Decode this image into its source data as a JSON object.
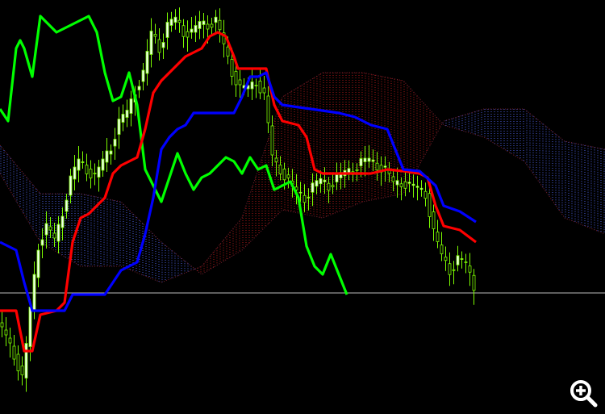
{
  "chart_data": {
    "type": "line",
    "title": "",
    "xlabel": "",
    "ylabel": "",
    "x": [
      0,
      50,
      100,
      150,
      200,
      250,
      300,
      350,
      400,
      450,
      500,
      550,
      600,
      650,
      700,
      750
    ],
    "ylim": [
      0,
      513
    ],
    "grid": false,
    "horizontal_line": 150,
    "cloud": {
      "span_a": [
        333,
        273,
        273,
        263,
        213,
        173,
        203,
        253,
        243,
        263,
        273,
        363,
        378,
        378,
        338,
        328
      ],
      "span_b": [
        298,
        213,
        183,
        183,
        163,
        183,
        243,
        393,
        423,
        423,
        413,
        358,
        343,
        313,
        243,
        223
      ],
      "bull_color": "#4b5fe0",
      "bear_color": "#b01818"
    },
    "series": [
      {
        "role": "chikou",
        "color": "#00ff00",
        "x": [
          0,
          10,
          20,
          25,
          30,
          40,
          50,
          60,
          70,
          80,
          90,
          110,
          120,
          130,
          140,
          150,
          160,
          170,
          180,
          190,
          200,
          210,
          220,
          230,
          240,
          250,
          260,
          270,
          280,
          290,
          300,
          310,
          320,
          330,
          340,
          350,
          360,
          370,
          380,
          390,
          400,
          410,
          420,
          430
        ],
        "values": [
          378,
          363,
          453,
          463,
          453,
          418,
          493,
          483,
          473,
          478,
          483,
          493,
          473,
          423,
          388,
          393,
          423,
          383,
          303,
          283,
          263,
          293,
          323,
          298,
          278,
          293,
          298,
          308,
          318,
          313,
          298,
          318,
          303,
          308,
          278,
          283,
          288,
          268,
          208,
          183,
          173,
          198,
          173,
          148
        ]
      },
      {
        "role": "kijun",
        "color": "#ff0000",
        "x": [
          0,
          20,
          30,
          40,
          50,
          70,
          80,
          90,
          100,
          110,
          130,
          140,
          150,
          170,
          180,
          190,
          200,
          210,
          230,
          250,
          260,
          270,
          280,
          290,
          295,
          330,
          340,
          350,
          370,
          380,
          390,
          400,
          440,
          460,
          480,
          500,
          520,
          530,
          540,
          550,
          570,
          590
        ],
        "values": [
          128,
          128,
          78,
          78,
          123,
          128,
          138,
          213,
          243,
          248,
          268,
          298,
          308,
          318,
          353,
          398,
          413,
          423,
          443,
          453,
          468,
          473,
          468,
          443,
          428,
          428,
          383,
          363,
          358,
          343,
          303,
          298,
          298,
          298,
          303,
          301,
          298,
          293,
          258,
          233,
          228,
          213
        ]
      },
      {
        "role": "tenkan",
        "color": "#0000ff",
        "x": [
          0,
          20,
          30,
          40,
          80,
          90,
          130,
          140,
          150,
          170,
          180,
          190,
          200,
          210,
          220,
          230,
          240,
          290,
          300,
          310,
          320,
          330,
          340,
          350,
          420,
          440,
          460,
          480,
          500,
          520,
          540,
          550,
          570,
          590
        ],
        "values": [
          213,
          203,
          163,
          128,
          128,
          148,
          148,
          163,
          178,
          188,
          223,
          268,
          328,
          343,
          353,
          358,
          373,
          373,
          393,
          418,
          418,
          423,
          393,
          383,
          373,
          368,
          358,
          353,
          303,
          301,
          283,
          258,
          251,
          238
        ]
      }
    ],
    "closes": {
      "x": [
        0,
        10,
        20,
        30,
        40,
        50,
        60,
        70,
        80,
        90,
        100,
        110,
        120,
        130,
        140,
        150,
        160,
        170,
        180,
        190,
        200,
        210,
        220,
        230,
        240,
        250,
        260,
        270,
        280,
        290,
        300,
        310,
        320,
        330,
        340,
        350,
        360,
        370,
        380,
        390,
        400,
        410,
        420,
        430,
        440,
        450,
        460,
        470,
        480,
        490,
        500,
        510,
        520,
        530,
        540,
        550,
        560,
        570,
        580,
        590
      ],
      "values": [
        113,
        93,
        73,
        43,
        133,
        213,
        233,
        213,
        253,
        293,
        313,
        303,
        293,
        313,
        333,
        363,
        373,
        403,
        423,
        473,
        453,
        483,
        488,
        473,
        473,
        483,
        483,
        488,
        453,
        423,
        403,
        403,
        413,
        393,
        313,
        303,
        288,
        273,
        268,
        283,
        288,
        283,
        293,
        298,
        303,
        313,
        313,
        308,
        303,
        283,
        288,
        283,
        278,
        273,
        223,
        193,
        178,
        193,
        183,
        158
      ],
      "bull_color": "#f0fff0",
      "wick_color": "#7cfc00"
    }
  },
  "toolbar": {
    "zoom_icon": "zoom-in-magnifier-icon"
  }
}
